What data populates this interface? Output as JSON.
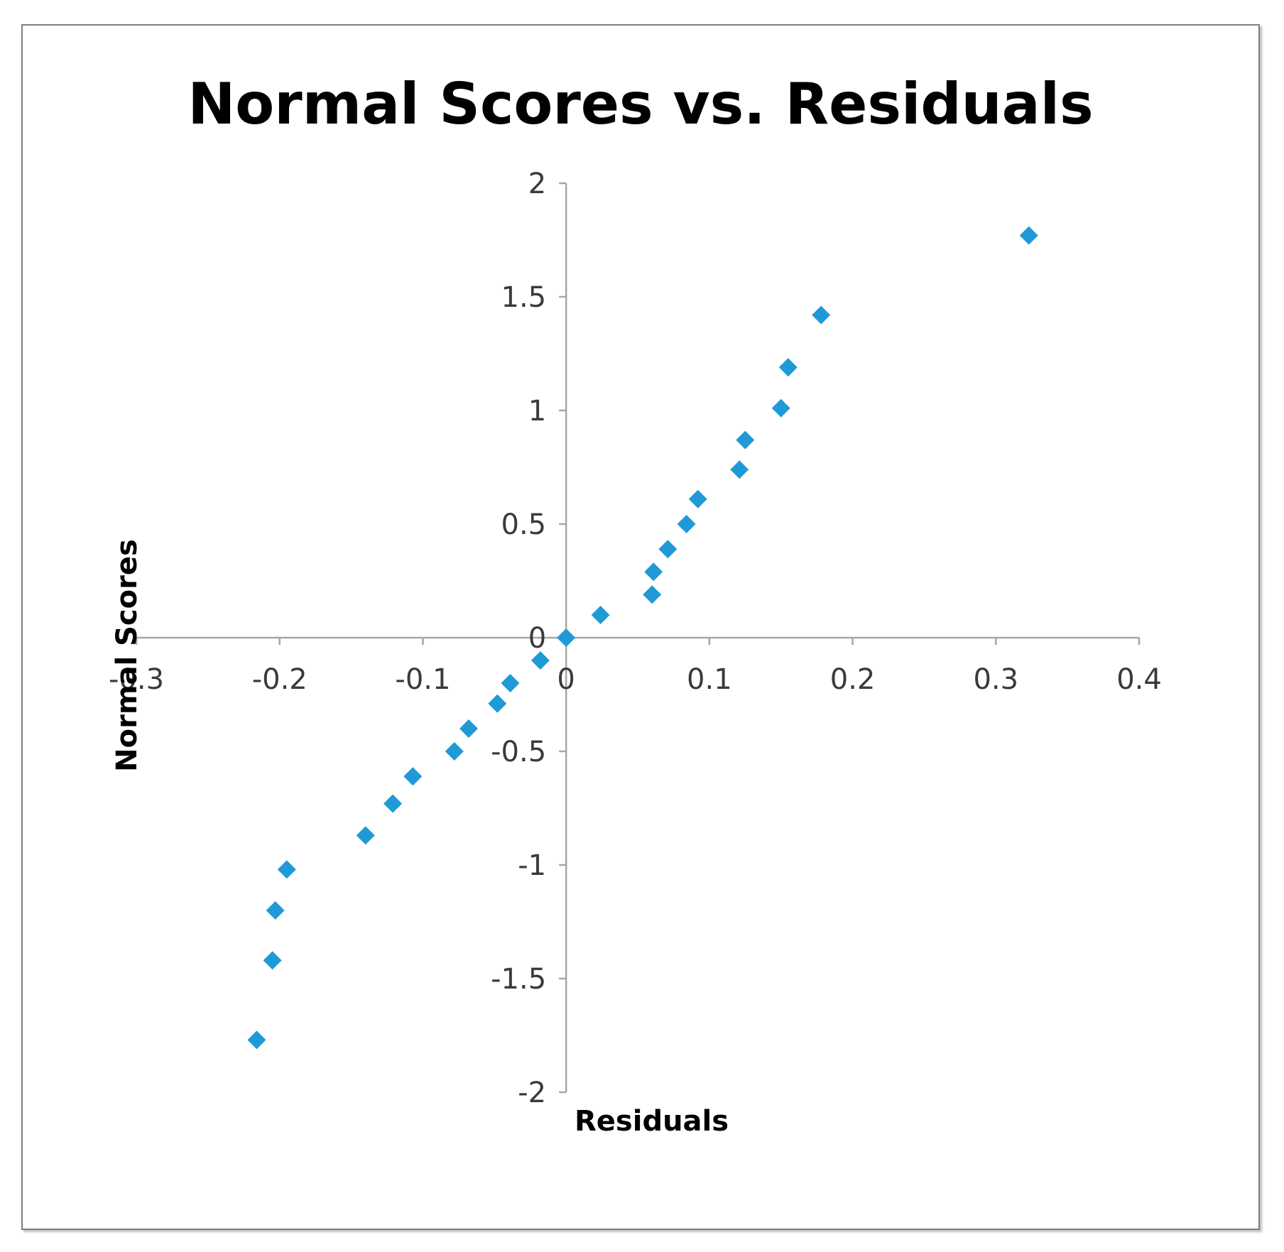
{
  "chart_data": {
    "type": "scatter",
    "title": "Normal Scores vs. Residuals",
    "xlabel": "Residuals",
    "ylabel": "Normal Scores",
    "xlim": [
      -0.3,
      0.4
    ],
    "ylim": [
      -2,
      2
    ],
    "x_ticks": [
      "-0.3",
      "-0.2",
      "-0.1",
      "0",
      "0.1",
      "0.2",
      "0.3",
      "0.4"
    ],
    "y_ticks": [
      "2",
      "1.5",
      "1",
      "0.5",
      "0",
      "-0.5",
      "-1",
      "-1.5",
      "-2"
    ],
    "grid": false,
    "legend": "none",
    "marker": "diamond",
    "color": "#1f9ad6",
    "points": [
      {
        "x": 0.323,
        "y": 1.77
      },
      {
        "x": 0.178,
        "y": 1.42
      },
      {
        "x": 0.155,
        "y": 1.19
      },
      {
        "x": 0.15,
        "y": 1.01
      },
      {
        "x": 0.125,
        "y": 0.87
      },
      {
        "x": 0.121,
        "y": 0.74
      },
      {
        "x": 0.092,
        "y": 0.61
      },
      {
        "x": 0.084,
        "y": 0.5
      },
      {
        "x": 0.071,
        "y": 0.39
      },
      {
        "x": 0.061,
        "y": 0.29
      },
      {
        "x": 0.06,
        "y": 0.19
      },
      {
        "x": 0.024,
        "y": 0.1
      },
      {
        "x": 0.0,
        "y": 0.0
      },
      {
        "x": -0.018,
        "y": -0.1
      },
      {
        "x": -0.039,
        "y": -0.2
      },
      {
        "x": -0.048,
        "y": -0.29
      },
      {
        "x": -0.068,
        "y": -0.4
      },
      {
        "x": -0.078,
        "y": -0.5
      },
      {
        "x": -0.107,
        "y": -0.61
      },
      {
        "x": -0.121,
        "y": -0.73
      },
      {
        "x": -0.14,
        "y": -0.87
      },
      {
        "x": -0.195,
        "y": -1.02
      },
      {
        "x": -0.203,
        "y": -1.2
      },
      {
        "x": -0.205,
        "y": -1.42
      },
      {
        "x": -0.216,
        "y": -1.77
      }
    ]
  }
}
